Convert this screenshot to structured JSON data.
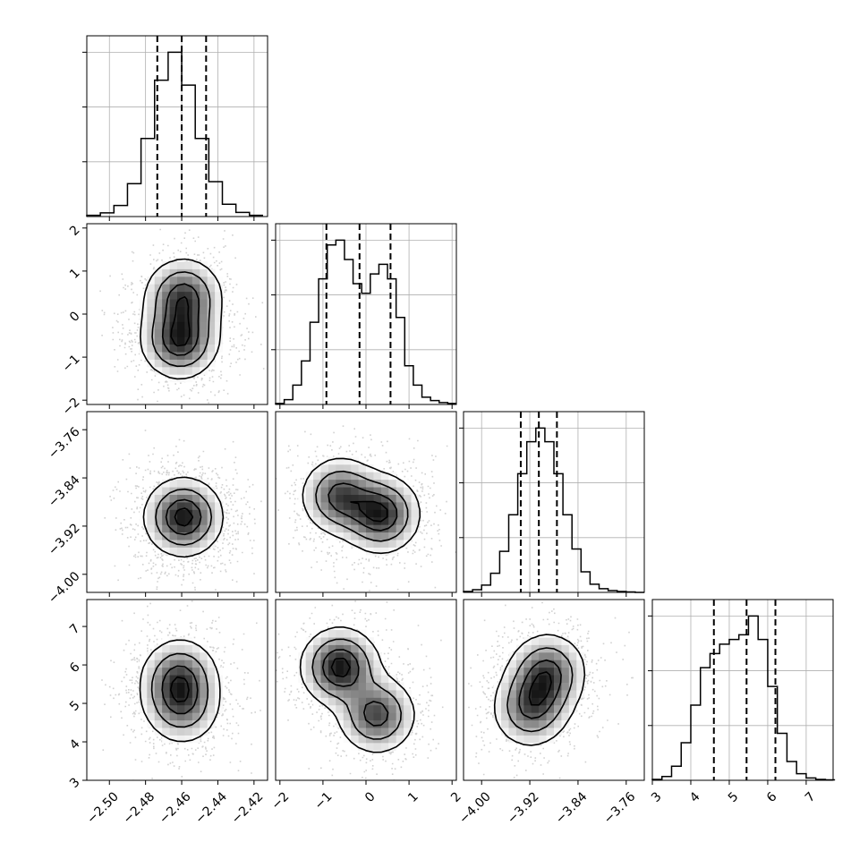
{
  "chart_data": {
    "type": "corner",
    "params": [
      {
        "ticks": [
          -2.5,
          -2.48,
          -2.46,
          -2.44,
          -2.42
        ],
        "tick_labels": [
          "−2.50",
          "−2.48",
          "−2.46",
          "−2.44",
          "−2.42"
        ],
        "range": [
          -2.5125,
          -2.4125
        ],
        "quantiles": [
          -2.4735,
          -2.46,
          -2.4465
        ],
        "hist": {
          "bin_edges": [
            -2.5125,
            -2.505,
            -2.4975,
            -2.49,
            -2.4825,
            -2.475,
            -2.4675,
            -2.46,
            -2.4525,
            -2.445,
            -2.4375,
            -2.43,
            -2.4225,
            -2.415
          ],
          "counts": [
            3,
            9,
            27,
            80,
            190,
            332,
            400,
            320,
            190,
            85,
            30,
            10,
            3
          ]
        }
      },
      {
        "ticks": [
          -2,
          -1,
          0,
          1,
          2
        ],
        "tick_labels": [
          "−2",
          "−1",
          "0",
          "1",
          "2"
        ],
        "range": [
          -2.1,
          2.1
        ],
        "quantiles": [
          -0.92,
          -0.15,
          0.57
        ],
        "hist": {
          "bin_edges": [
            -2.1,
            -1.9,
            -1.7,
            -1.5,
            -1.3,
            -1.1,
            -0.9,
            -0.7,
            -0.5,
            -0.3,
            -0.1,
            0.1,
            0.3,
            0.5,
            0.7,
            0.9,
            1.1,
            1.3,
            1.5,
            1.7,
            1.9,
            2.1
          ],
          "counts": [
            2,
            10,
            40,
            90,
            170,
            260,
            330,
            340,
            300,
            250,
            230,
            270,
            290,
            260,
            180,
            80,
            40,
            15,
            8,
            4,
            2
          ]
        }
      },
      {
        "ticks": [
          -4.0,
          -3.92,
          -3.84,
          -3.76
        ],
        "tick_labels": [
          "−4.00",
          "−3.92",
          "−3.84",
          "−3.76"
        ],
        "range": [
          -4.03,
          -3.73
        ],
        "quantiles": [
          -3.935,
          -3.905,
          -3.875
        ],
        "hist": {
          "bin_edges": [
            -4.03,
            -4.015,
            -4.0,
            -3.985,
            -3.97,
            -3.955,
            -3.94,
            -3.925,
            -3.91,
            -3.895,
            -3.88,
            -3.865,
            -3.85,
            -3.835,
            -3.82,
            -3.805,
            -3.79,
            -3.775,
            -3.76,
            -3.745,
            -3.73
          ],
          "counts": [
            2,
            6,
            16,
            42,
            90,
            170,
            260,
            330,
            360,
            330,
            260,
            170,
            95,
            45,
            18,
            8,
            4,
            2,
            1,
            0
          ]
        }
      },
      {
        "ticks": [
          3,
          4,
          5,
          6,
          7
        ],
        "tick_labels": [
          "3",
          "4",
          "5",
          "6",
          "7"
        ],
        "range": [
          3.0,
          7.7
        ],
        "quantiles": [
          4.6,
          5.45,
          6.2
        ],
        "hist": {
          "bin_edges": [
            3.0,
            3.25,
            3.5,
            3.75,
            4.0,
            4.25,
            4.5,
            4.75,
            5.0,
            5.25,
            5.5,
            5.75,
            6.0,
            6.25,
            6.5,
            6.75,
            7.0,
            7.25,
            7.5,
            7.75
          ],
          "counts": [
            2,
            8,
            30,
            80,
            160,
            240,
            270,
            290,
            300,
            310,
            350,
            300,
            200,
            100,
            40,
            14,
            5,
            2,
            1
          ]
        }
      }
    ],
    "grid": true,
    "pairs": [
      {
        "row": 1,
        "col": 0,
        "peaks": [
          [
            -2.459,
            0.4,
            0.9
          ],
          [
            -2.461,
            -0.6,
            1.0
          ]
        ]
      },
      {
        "row": 2,
        "col": 0,
        "peaks": [
          [
            -2.459,
            -3.905,
            1.0
          ]
        ]
      },
      {
        "row": 2,
        "col": 1,
        "peaks": [
          [
            -0.6,
            -3.87,
            0.85
          ],
          [
            0.35,
            -3.9,
            1.0
          ]
        ]
      },
      {
        "row": 3,
        "col": 0,
        "peaks": [
          [
            -2.461,
            5.75,
            1.0
          ],
          [
            -2.462,
            5.2,
            0.7
          ],
          [
            -2.459,
            4.8,
            0.6
          ]
        ]
      },
      {
        "row": 3,
        "col": 1,
        "peaks": [
          [
            -0.6,
            5.95,
            1.0
          ],
          [
            0.25,
            4.7,
            0.8
          ]
        ]
      },
      {
        "row": 3,
        "col": 2,
        "peaks": [
          [
            -3.89,
            5.85,
            1.0
          ],
          [
            -3.92,
            4.8,
            0.8
          ],
          [
            -3.905,
            5.25,
            0.5
          ]
        ]
      }
    ]
  }
}
